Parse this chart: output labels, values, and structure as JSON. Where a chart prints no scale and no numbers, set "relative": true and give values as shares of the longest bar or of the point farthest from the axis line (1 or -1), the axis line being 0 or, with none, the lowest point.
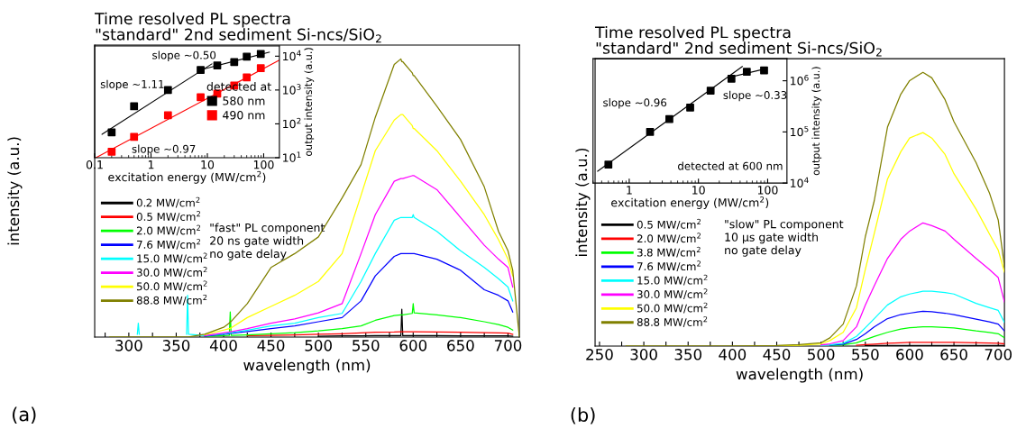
{
  "chart_data": [
    {
      "type": "line",
      "title": "Time resolved PL spectra\n\"standard\" 2nd sediment Si-ncs/SiO$_{2}$",
      "xlabel": "wavelength (nm)",
      "ylabel": "intensity (a.u.)",
      "relative": true,
      "legend": "left",
      "annotations": [
        "\"fast\" PL component\n20 ns gate width\nno gate delay",
        "(a)"
      ],
      "xlim": [
        264,
        712
      ],
      "xticks": [
        {
          "value": 275,
          "label": null
        },
        300,
        {
          "value": 325,
          "label": null
        },
        350,
        {
          "value": 375,
          "label": null
        },
        400,
        {
          "value": 425,
          "label": null
        },
        450,
        {
          "value": 475,
          "label": null
        },
        500,
        {
          "value": 525,
          "label": null
        },
        550,
        {
          "value": 575,
          "label": null
        },
        600,
        {
          "value": 625,
          "label": null
        },
        650,
        {
          "value": 675,
          "label": null
        },
        700
      ],
      "x": [
        280,
        300,
        309,
        310,
        311,
        350,
        361,
        362,
        363,
        380,
        400,
        406,
        407,
        408,
        425,
        450,
        475,
        500,
        525,
        545,
        560,
        580,
        587,
        588,
        589,
        599,
        600,
        601,
        625,
        650,
        675,
        690,
        700,
        705,
        712
      ],
      "series": [
        {
          "name": "0.2 MW/cm$^{2}$",
          "color": "#000000",
          "values": [
            null,
            null,
            null,
            null,
            null,
            null,
            null,
            null,
            null,
            null,
            null,
            null,
            null,
            null,
            null,
            null,
            null,
            0.003,
            0.004,
            0.004,
            0.005,
            0.005,
            0.005,
            0.1,
            0.005,
            0.005,
            0.005,
            0.005,
            0.005,
            0.004,
            0.004,
            0.004,
            0.004,
            0.003,
            null
          ]
        },
        {
          "name": "0.5 MW/cm$^{2}$",
          "color": "#ff0000",
          "values": [
            null,
            null,
            null,
            null,
            null,
            null,
            null,
            null,
            null,
            null,
            null,
            null,
            null,
            null,
            0.005,
            0.006,
            0.008,
            0.01,
            0.012,
            0.015,
            0.017,
            0.018,
            0.019,
            0.019,
            0.019,
            0.019,
            0.019,
            0.019,
            0.018,
            0.017,
            0.016,
            0.015,
            0.014,
            0.01,
            null
          ]
        },
        {
          "name": "2.0 MW/cm$^{2}$",
          "color": "#00ff00",
          "values": [
            null,
            null,
            null,
            null,
            null,
            null,
            null,
            null,
            null,
            0.002,
            0.005,
            0.006,
            0.09,
            0.006,
            0.008,
            0.012,
            0.016,
            0.022,
            0.03,
            0.04,
            0.06,
            0.077,
            0.08,
            0.08,
            0.08,
            0.085,
            0.12,
            0.087,
            0.08,
            0.07,
            0.055,
            0.045,
            0.035,
            0.025,
            null
          ]
        },
        {
          "name": "7.6 MW/cm$^{2}$",
          "color": "#0000ff",
          "values": [
            null,
            null,
            null,
            null,
            null,
            null,
            null,
            null,
            null,
            0.003,
            0.01,
            0.012,
            0.013,
            0.013,
            0.02,
            0.03,
            0.04,
            0.055,
            0.07,
            0.13,
            0.22,
            0.29,
            0.3,
            0.3,
            0.3,
            0.3,
            0.3,
            0.3,
            0.28,
            0.24,
            0.17,
            0.15,
            0.13,
            0.09,
            null
          ]
        },
        {
          "name": "15.0 MW/cm$^{2}$",
          "color": "#00ffff",
          "values": [
            null,
            null,
            0.01,
            0.05,
            0.01,
            null,
            0.01,
            0.15,
            0.01,
            0.005,
            0.012,
            0.015,
            0.016,
            0.016,
            0.025,
            0.04,
            0.05,
            0.07,
            0.085,
            0.2,
            0.3,
            0.42,
            0.43,
            0.43,
            0.43,
            0.43,
            0.44,
            0.43,
            0.38,
            0.31,
            0.25,
            0.21,
            0.18,
            0.13,
            null
          ]
        },
        {
          "name": "30.0 MW/cm$^{2}$",
          "color": "#ff00ff",
          "values": [
            null,
            null,
            null,
            null,
            null,
            null,
            null,
            null,
            null,
            0.005,
            0.015,
            0.018,
            0.019,
            0.019,
            0.03,
            0.05,
            0.065,
            0.087,
            0.12,
            0.3,
            0.44,
            0.56,
            0.57,
            0.57,
            0.57,
            0.58,
            0.58,
            0.58,
            0.53,
            0.43,
            0.33,
            0.28,
            0.25,
            0.18,
            null
          ]
        },
        {
          "name": "50.0 MW/cm$^{2}$",
          "color": "#ffff00",
          "values": [
            null,
            null,
            null,
            null,
            null,
            null,
            null,
            null,
            null,
            0.008,
            0.025,
            0.03,
            0.032,
            0.033,
            0.07,
            0.11,
            0.15,
            0.2,
            0.3,
            0.51,
            0.67,
            0.78,
            0.8,
            0.8,
            0.8,
            0.76,
            0.75,
            0.75,
            0.67,
            0.56,
            0.44,
            0.35,
            0.28,
            0.22,
            null
          ]
        },
        {
          "name": "88.8 MW/cm$^{2}$",
          "color": "#808000",
          "values": [
            0,
            0,
            0,
            0,
            0,
            0,
            0,
            0,
            0,
            0.01,
            0.035,
            0.05,
            0.055,
            0.056,
            0.12,
            0.25,
            0.3,
            0.36,
            0.5,
            0.62,
            0.79,
            0.98,
            1,
            0.99,
            0.99,
            0.95,
            0.94,
            0.94,
            0.83,
            0.71,
            0.54,
            0.38,
            0.31,
            0.24,
            0
          ]
        }
      ]
    },
    {
      "type": "scatter",
      "xlabel": "excitation energy (MW/cm$^{2}$)",
      "ylabel": "output intensity (a.u.)",
      "log": "xy",
      "legend": "right",
      "legend_title": "detected at",
      "marker": "square",
      "xlim": [
        0.1,
        190
      ],
      "xticks": [
        0.1,
        1,
        10,
        100
      ],
      "ylim": [
        10,
        20000
      ],
      "yticks": [
        {
          "value": 10,
          "label": "10$^{1}$"
        },
        {
          "value": 100,
          "label": "10$^{2}$"
        },
        {
          "value": 1000,
          "label": "10$^{3}$"
        },
        {
          "value": 10000,
          "label": "10$^{4}$"
        }
      ],
      "annotations": [
        "slope ~0.50",
        "slope ~1.11",
        "slope ~0.97"
      ],
      "x": [
        0.2,
        0.5,
        2.0,
        7.6,
        15.0,
        30.0,
        50.0,
        88.8
      ],
      "series": [
        {
          "name": "580 nm",
          "color": "#000000",
          "values": [
            56,
            330,
            1000,
            3900,
            5300,
            6700,
            9700,
            11700
          ]
        },
        {
          "name": "490 nm",
          "color": "#ff0000",
          "values": [
            15,
            41,
            180,
            610,
            780,
            1350,
            2350,
            4400
          ]
        },
        {
          "type": "line",
          "marker": "none",
          "color": "#000000",
          "x": [
            0.135,
            12
          ],
          "values": [
            49,
            5900
          ]
        },
        {
          "type": "line",
          "marker": "none",
          "color": "#000000",
          "x": [
            7.4,
            126
          ],
          "values": [
            3900,
            13200
          ]
        },
        {
          "type": "line",
          "marker": "none",
          "color": "#ff0000",
          "x": [
            0.105,
            190
          ],
          "values": [
            10,
            7600
          ]
        }
      ]
    },
    {
      "type": "line",
      "title": "Time resolved PL spectra\n\"standard\" 2nd sediment Si-ncs/SiO$_{2}$",
      "xlabel": "wavelength (nm)",
      "ylabel": "intensity (a.u.)",
      "relative": true,
      "legend": "left",
      "annotations": [
        "\"slow\" PL component\n10 μs gate width\nno gate delay",
        "(b)"
      ],
      "xlim": [
        245,
        707
      ],
      "xticks": [
        250,
        {
          "value": 275,
          "label": null
        },
        300,
        {
          "value": 325,
          "label": null
        },
        350,
        {
          "value": 375,
          "label": null
        },
        400,
        {
          "value": 425,
          "label": null
        },
        450,
        {
          "value": 475,
          "label": null
        },
        500,
        {
          "value": 525,
          "label": null
        },
        550,
        {
          "value": 575,
          "label": null
        },
        600,
        {
          "value": 625,
          "label": null
        },
        650,
        {
          "value": 675,
          "label": null
        },
        700
      ],
      "x": [
        280,
        400,
        450,
        475,
        500,
        510,
        525,
        540,
        550,
        560,
        575,
        590,
        600,
        615,
        625,
        640,
        650,
        675,
        690,
        700,
        707
      ],
      "series": [
        {
          "name": "0.5 MW/cm$^{2}$",
          "color": "#000000",
          "values": [
            null,
            null,
            null,
            null,
            null,
            null,
            null,
            null,
            0.002,
            0.002,
            0.002,
            0.002,
            0.002,
            0.002,
            0.002,
            0.002,
            0.002,
            0.002,
            0.002,
            0.002,
            0.002
          ]
        },
        {
          "name": "2.0 MW/cm$^{2}$",
          "color": "#ff0000",
          "values": [
            null,
            null,
            null,
            null,
            null,
            null,
            null,
            0.003,
            0.005,
            0.007,
            0.01,
            0.012,
            0.013,
            0.013,
            0.013,
            0.013,
            0.013,
            0.012,
            0.011,
            0.01,
            0.008
          ]
        },
        {
          "name": "3.8 MW/cm$^{2}$",
          "color": "#00ff00",
          "values": [
            null,
            null,
            null,
            null,
            null,
            0.002,
            0.004,
            0.012,
            0.023,
            0.035,
            0.05,
            0.062,
            0.067,
            0.07,
            0.07,
            0.068,
            0.066,
            0.055,
            0.05,
            0.045,
            0.03
          ]
        },
        {
          "name": "7.6 MW/cm$^{2}$",
          "color": "#0000ff",
          "values": [
            null,
            null,
            null,
            null,
            null,
            0.003,
            0.007,
            0.024,
            0.045,
            0.07,
            0.1,
            0.115,
            0.12,
            0.127,
            0.125,
            0.12,
            0.115,
            0.098,
            0.088,
            0.08,
            0.055
          ]
        },
        {
          "name": "15.0 MW/cm$^{2}$",
          "color": "#00ffff",
          "values": [
            null,
            null,
            null,
            null,
            0.002,
            0.004,
            0.01,
            0.035,
            0.067,
            0.1,
            0.15,
            0.18,
            0.19,
            0.2,
            0.2,
            0.195,
            0.19,
            0.156,
            0.14,
            0.13,
            0.086
          ]
        },
        {
          "name": "30.0 MW/cm$^{2}$",
          "color": "#ff00ff",
          "values": [
            null,
            null,
            null,
            null,
            0.004,
            0.008,
            0.02,
            0.07,
            0.15,
            0.22,
            0.32,
            0.39,
            0.42,
            0.45,
            0.44,
            0.42,
            0.39,
            0.32,
            0.28,
            0.25,
            0.16
          ]
        },
        {
          "name": "50.0 MW/cm$^{2}$",
          "color": "#ffff00",
          "values": [
            null,
            null,
            0.001,
            0.003,
            0.008,
            0.02,
            0.05,
            0.14,
            0.28,
            0.41,
            0.61,
            0.71,
            0.76,
            0.78,
            0.76,
            0.7,
            0.63,
            0.5,
            0.41,
            0.35,
            0.27
          ]
        },
        {
          "name": "88.8 MW/cm$^{2}$",
          "color": "#808000",
          "values": [
            0,
            0,
            0.002,
            0.005,
            0.012,
            0.03,
            0.08,
            0.22,
            0.4,
            0.53,
            0.8,
            0.92,
            0.97,
            1,
            0.98,
            0.9,
            0.82,
            0.67,
            0.56,
            0.46,
            0.29
          ]
        }
      ]
    },
    {
      "type": "scatter",
      "xlabel": "excitation energy (MW/cm$^{2}$)",
      "ylabel": "output intensity (a.u.)",
      "log": "xy",
      "marker": "square",
      "xlim": [
        0.3,
        190
      ],
      "xticks": [
        1,
        10,
        100
      ],
      "ylim": [
        10000,
        2700000
      ],
      "yticks": [
        {
          "value": 10000,
          "label": "10$^{4}$"
        },
        {
          "value": 100000,
          "label": "10$^{5}$"
        },
        {
          "value": 1000000,
          "label": "10$^{6}$"
        }
      ],
      "annotations": [
        "slope ~0.96",
        "slope ~0.33",
        "detected at 600 nm"
      ],
      "x": [
        0.5,
        2.0,
        3.8,
        7.6,
        15.0,
        30.0,
        50.0,
        88.8
      ],
      "series": [
        {
          "color": "#000000",
          "values": [
            23000,
            100000,
            178000,
            300000,
            640000,
            1100000,
            1500000,
            1600000
          ]
        },
        {
          "type": "line",
          "marker": "none",
          "color": "#000000",
          "x": [
            0.35,
            43
          ],
          "values": [
            17000,
            1900000
          ]
        },
        {
          "type": "line",
          "marker": "none",
          "color": "#000000",
          "x": [
            28,
            91
          ],
          "values": [
            1170000,
            1700000
          ]
        }
      ]
    }
  ]
}
